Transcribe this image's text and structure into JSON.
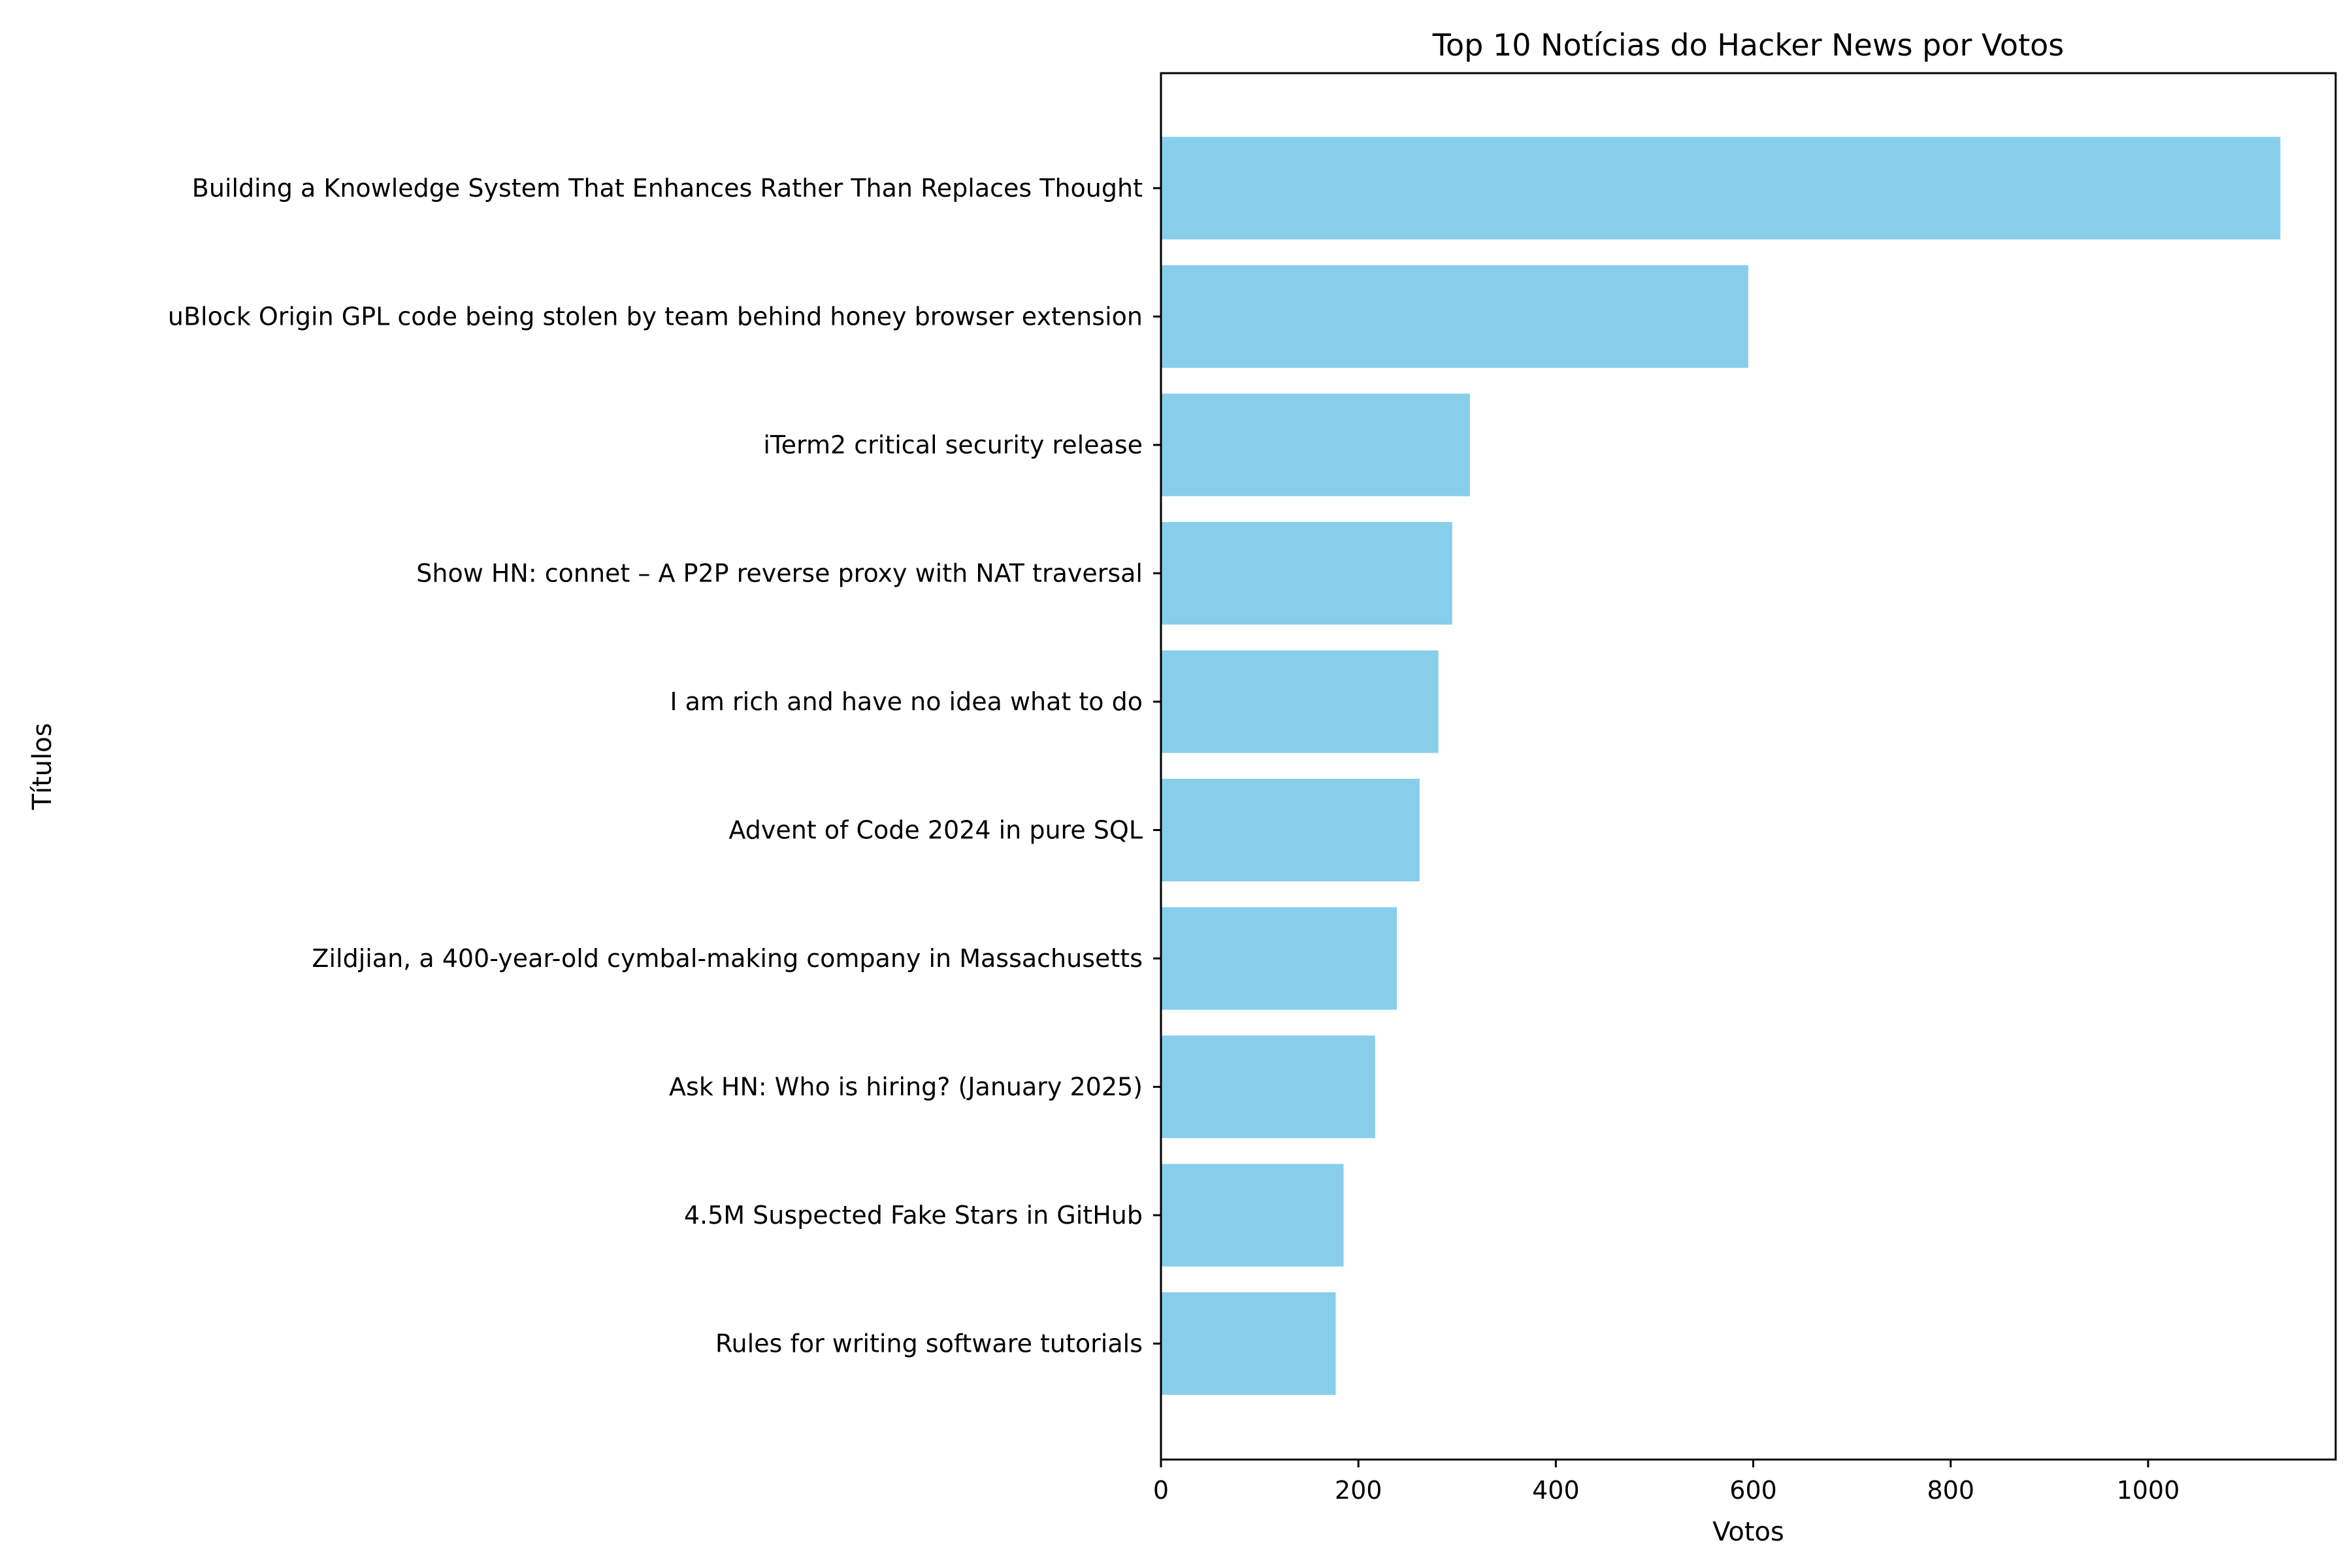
{
  "chart_data": {
    "type": "bar",
    "orientation": "horizontal",
    "title": "Top 10 Notícias do Hacker News por Votos",
    "xlabel": "Votos",
    "ylabel": "Títulos",
    "xlim": [
      0,
      1190
    ],
    "xticks": [
      0,
      200,
      400,
      600,
      800,
      1000
    ],
    "grid": false,
    "bar_color": "#87CEEB",
    "categories": [
      "Building a Knowledge System That Enhances Rather Than Replaces Thought",
      "uBlock Origin GPL code being stolen by team behind honey browser extension",
      "iTerm2 critical security release",
      "Show HN: connet – A P2P reverse proxy with NAT traversal",
      "I am rich and have no idea what to do",
      "Advent of Code 2024 in pure SQL",
      "Zildjian, a 400-year-old cymbal-making company in Massachusetts",
      "Ask HN: Who is hiring? (January 2025)",
      "4.5M Suspected Fake Stars in GitHub",
      "Rules for writing software tutorials"
    ],
    "values": [
      1134,
      595,
      313,
      295,
      281,
      262,
      239,
      217,
      185,
      177
    ]
  }
}
